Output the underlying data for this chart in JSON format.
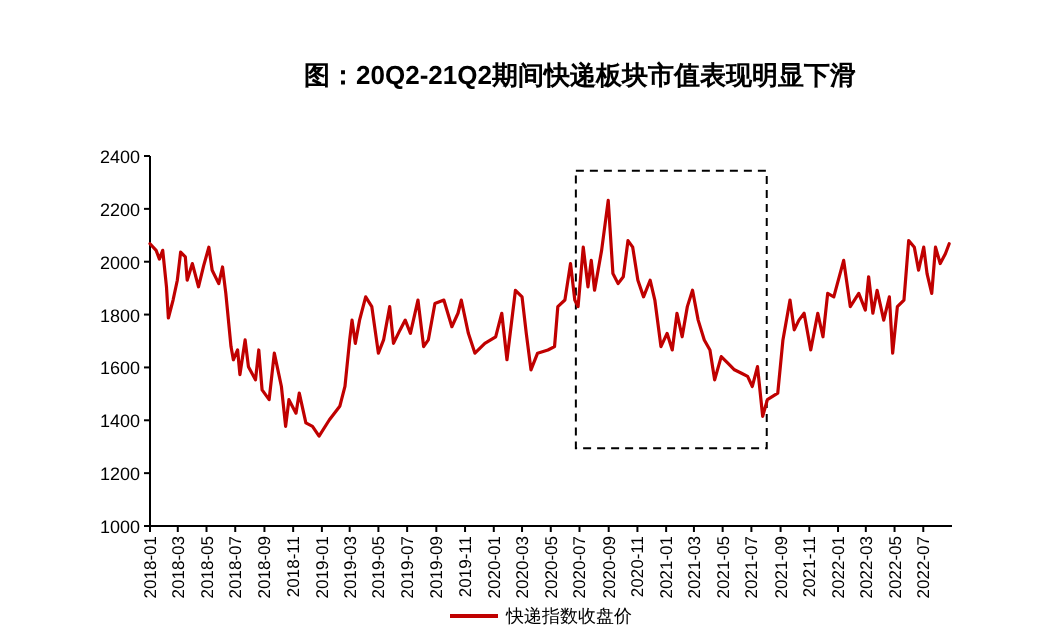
{
  "chart_data": {
    "type": "line",
    "title": "图：20Q2-21Q2期间快递板块市值表现明显下滑",
    "x": [
      "2018-01-01",
      "2018-01-14",
      "2018-01-21",
      "2018-01-28",
      "2018-02-05",
      "2018-02-09",
      "2018-02-19",
      "2018-02-28",
      "2018-03-07",
      "2018-03-17",
      "2018-03-21",
      "2018-04-01",
      "2018-04-14",
      "2018-04-25",
      "2018-05-06",
      "2018-05-13",
      "2018-05-27",
      "2018-06-04",
      "2018-06-11",
      "2018-06-22",
      "2018-06-27",
      "2018-07-06",
      "2018-07-11",
      "2018-07-22",
      "2018-07-29",
      "2018-08-13",
      "2018-08-20",
      "2018-08-27",
      "2018-09-11",
      "2018-09-22",
      "2018-10-07",
      "2018-10-16",
      "2018-10-23",
      "2018-11-07",
      "2018-11-14",
      "2018-11-28",
      "2018-12-12",
      "2018-12-26",
      "2019-01-17",
      "2019-02-08",
      "2019-02-19",
      "2019-03-01",
      "2019-03-06",
      "2019-03-13",
      "2019-03-22",
      "2019-04-04",
      "2019-04-17",
      "2019-05-01",
      "2019-05-12",
      "2019-05-25",
      "2019-06-02",
      "2019-06-16",
      "2019-06-27",
      "2019-07-08",
      "2019-07-24",
      "2019-08-05",
      "2019-08-15",
      "2019-08-29",
      "2019-09-17",
      "2019-10-04",
      "2019-10-17",
      "2019-10-24",
      "2019-11-08",
      "2019-11-22",
      "2019-12-13",
      "2020-01-05",
      "2020-01-18",
      "2020-01-29",
      "2020-02-16",
      "2020-03-01",
      "2020-03-10",
      "2020-03-20",
      "2020-04-03",
      "2020-04-25",
      "2020-05-09",
      "2020-05-16",
      "2020-05-31",
      "2020-06-12",
      "2020-06-21",
      "2020-06-28",
      "2020-07-09",
      "2020-07-19",
      "2020-07-26",
      "2020-08-02",
      "2020-08-17",
      "2020-08-31",
      "2020-09-10",
      "2020-09-21",
      "2020-10-02",
      "2020-10-12",
      "2020-10-22",
      "2020-11-02",
      "2020-11-14",
      "2020-11-28",
      "2020-12-08",
      "2020-12-21",
      "2021-01-03",
      "2021-01-14",
      "2021-01-24",
      "2021-02-04",
      "2021-02-15",
      "2021-02-26",
      "2021-03-10",
      "2021-03-23",
      "2021-04-04",
      "2021-04-14",
      "2021-04-28",
      "2021-05-12",
      "2021-05-26",
      "2021-06-10",
      "2021-06-23",
      "2021-07-03",
      "2021-07-14",
      "2021-07-25",
      "2021-08-04",
      "2021-08-26",
      "2021-09-06",
      "2021-09-21",
      "2021-09-30",
      "2021-10-10",
      "2021-10-21",
      "2021-11-04",
      "2021-11-19",
      "2021-11-30",
      "2021-12-10",
      "2021-12-23",
      "2022-01-13",
      "2022-01-27",
      "2022-02-14",
      "2022-02-28",
      "2022-03-07",
      "2022-03-16",
      "2022-03-25",
      "2022-04-08",
      "2022-04-20",
      "2022-04-27",
      "2022-05-07",
      "2022-05-21",
      "2022-05-31",
      "2022-06-12",
      "2022-06-21",
      "2022-07-02",
      "2022-07-09",
      "2022-07-19",
      "2022-07-27",
      "2022-08-06",
      "2022-08-17",
      "2022-08-25"
    ],
    "series": [
      {
        "name": "快递指数收盘价",
        "color": "#c00000",
        "values": [
          2068,
          2043,
          2010,
          2043,
          1905,
          1787,
          1855,
          1930,
          2036,
          2018,
          1930,
          1993,
          1905,
          1985,
          2055,
          1968,
          1917,
          1980,
          1880,
          1679,
          1629,
          1666,
          1573,
          1704,
          1603,
          1553,
          1666,
          1515,
          1478,
          1654,
          1528,
          1377,
          1478,
          1427,
          1503,
          1390,
          1377,
          1340,
          1402,
          1453,
          1528,
          1704,
          1779,
          1691,
          1779,
          1867,
          1830,
          1654,
          1704,
          1830,
          1691,
          1742,
          1779,
          1729,
          1855,
          1679,
          1704,
          1842,
          1855,
          1754,
          1805,
          1855,
          1729,
          1654,
          1691,
          1716,
          1805,
          1629,
          1892,
          1867,
          1729,
          1591,
          1654,
          1666,
          1679,
          1830,
          1855,
          1993,
          1855,
          1830,
          2055,
          1905,
          2005,
          1892,
          2043,
          2232,
          1955,
          1917,
          1943,
          2080,
          2055,
          1930,
          1867,
          1930,
          1855,
          1679,
          1729,
          1666,
          1805,
          1716,
          1830,
          1892,
          1779,
          1704,
          1666,
          1553,
          1641,
          1616,
          1591,
          1578,
          1566,
          1528,
          1603,
          1415,
          1478,
          1503,
          1704,
          1855,
          1742,
          1779,
          1805,
          1666,
          1805,
          1716,
          1880,
          1867,
          2005,
          1830,
          1880,
          1817,
          1943,
          1805,
          1892,
          1779,
          1867,
          1654,
          1830,
          1855,
          2080,
          2055,
          1968,
          2055,
          1955,
          1880,
          2055,
          1993,
          2030,
          2068
        ]
      }
    ],
    "xlim": [
      "2018-01-01",
      "2022-08-31"
    ],
    "xticks": [
      {
        "value": "2018-01-01",
        "label": "2018-01"
      },
      {
        "value": "2018-03-01",
        "label": "2018-03"
      },
      {
        "value": "2018-05-01",
        "label": "2018-05"
      },
      {
        "value": "2018-07-01",
        "label": "2018-07"
      },
      {
        "value": "2018-09-01",
        "label": "2018-09"
      },
      {
        "value": "2018-11-01",
        "label": "2018-11"
      },
      {
        "value": "2019-01-01",
        "label": "2019-01"
      },
      {
        "value": "2019-03-01",
        "label": "2019-03"
      },
      {
        "value": "2019-05-01",
        "label": "2019-05"
      },
      {
        "value": "2019-07-01",
        "label": "2019-07"
      },
      {
        "value": "2019-09-01",
        "label": "2019-09"
      },
      {
        "value": "2019-11-01",
        "label": "2019-11"
      },
      {
        "value": "2020-01-01",
        "label": "2020-01"
      },
      {
        "value": "2020-03-01",
        "label": "2020-03"
      },
      {
        "value": "2020-05-01",
        "label": "2020-05"
      },
      {
        "value": "2020-07-01",
        "label": "2020-07"
      },
      {
        "value": "2020-09-01",
        "label": "2020-09"
      },
      {
        "value": "2020-11-01",
        "label": "2020-11"
      },
      {
        "value": "2021-01-01",
        "label": "2021-01"
      },
      {
        "value": "2021-03-01",
        "label": "2021-03"
      },
      {
        "value": "2021-05-01",
        "label": "2021-05"
      },
      {
        "value": "2021-07-01",
        "label": "2021-07"
      },
      {
        "value": "2021-09-01",
        "label": "2021-09"
      },
      {
        "value": "2021-11-01",
        "label": "2021-11"
      },
      {
        "value": "2022-01-01",
        "label": "2022-01"
      },
      {
        "value": "2022-03-01",
        "label": "2022-03"
      },
      {
        "value": "2022-05-01",
        "label": "2022-05"
      },
      {
        "value": "2022-07-01",
        "label": "2022-07"
      }
    ],
    "ylim": [
      1000,
      2400
    ],
    "yticks": [
      1000,
      1200,
      1400,
      1600,
      1800,
      2000,
      2200,
      2400
    ],
    "grid": false,
    "legend": "bottom",
    "marker": "none",
    "line_style": "solid"
  }
}
